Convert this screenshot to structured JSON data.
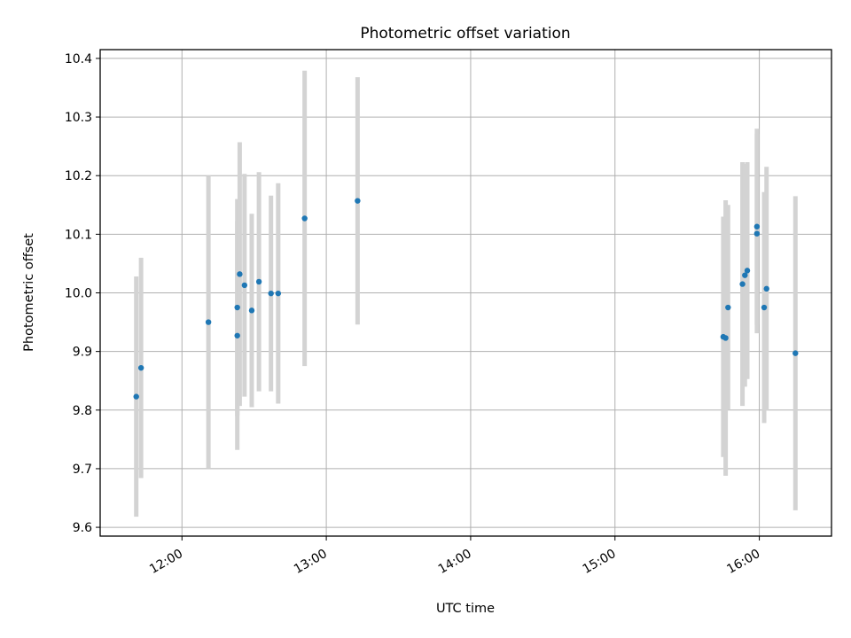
{
  "chart_data": {
    "type": "scatter",
    "title": "Photometric offset variation",
    "xlabel": "UTC time",
    "ylabel": "Photometric offset",
    "x_tick_labels": [
      "12:00",
      "13:00",
      "14:00",
      "15:00",
      "16:00"
    ],
    "y_tick_labels": [
      "9.6",
      "9.7",
      "9.8",
      "9.9",
      "10.0",
      "10.1",
      "10.2",
      "10.3",
      "10.4"
    ],
    "xlim": [
      "11:26",
      "16:30"
    ],
    "ylim": [
      9.585,
      10.415
    ],
    "grid": true,
    "colors": {
      "point": "#1f77b4",
      "error_bar": "#d3d3d3",
      "grid": "#b0b0b0",
      "axes": "#000000"
    },
    "series": [
      {
        "points": [
          {
            "x": "11:41",
            "y": 9.823,
            "yerr": 0.205
          },
          {
            "x": "11:43",
            "y": 9.872,
            "yerr": 0.188
          },
          {
            "x": "12:11",
            "y": 9.95,
            "yerr": 0.25
          },
          {
            "x": "12:23",
            "y": 9.927,
            "yerr": 0.195
          },
          {
            "x": "12:23",
            "y": 9.975,
            "yerr": 0.185
          },
          {
            "x": "12:24",
            "y": 10.032,
            "yerr": 0.225
          },
          {
            "x": "12:26",
            "y": 10.013,
            "yerr": 0.19
          },
          {
            "x": "12:29",
            "y": 9.97,
            "yerr": 0.165
          },
          {
            "x": "12:32",
            "y": 10.019,
            "yerr": 0.187
          },
          {
            "x": "12:37",
            "y": 9.999,
            "yerr": 0.167
          },
          {
            "x": "12:40",
            "y": 9.999,
            "yerr": 0.188
          },
          {
            "x": "12:51",
            "y": 10.127,
            "yerr": 0.252
          },
          {
            "x": "13:13",
            "y": 10.157,
            "yerr": 0.211
          },
          {
            "x": "15:45",
            "y": 9.925,
            "yerr": 0.205
          },
          {
            "x": "15:46",
            "y": 9.923,
            "yerr": 0.235
          },
          {
            "x": "15:47",
            "y": 9.975,
            "yerr": 0.175
          },
          {
            "x": "15:53",
            "y": 10.015,
            "yerr": 0.208
          },
          {
            "x": "15:54",
            "y": 10.03,
            "yerr": 0.19
          },
          {
            "x": "15:55",
            "y": 10.038,
            "yerr": 0.185
          },
          {
            "x": "15:59",
            "y": 10.113,
            "yerr": 0.167
          },
          {
            "x": "15:59",
            "y": 10.101,
            "yerr": 0.17
          },
          {
            "x": "16:02",
            "y": 9.975,
            "yerr": 0.197
          },
          {
            "x": "16:03",
            "y": 10.007,
            "yerr": 0.208
          },
          {
            "x": "16:15",
            "y": 9.897,
            "yerr": 0.268
          }
        ]
      }
    ]
  }
}
